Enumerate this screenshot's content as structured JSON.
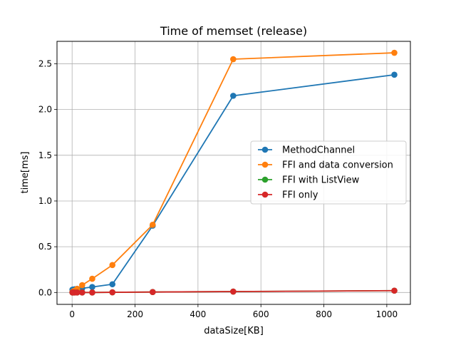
{
  "chart_data": {
    "type": "line",
    "title": "Time of memset (release)",
    "xlabel": "dataSize[KB]",
    "ylabel": "time[ms]",
    "xlim": [
      -48,
      1075
    ],
    "ylim": [
      -0.13,
      2.745
    ],
    "xticks": [
      0,
      200,
      400,
      600,
      800,
      1000
    ],
    "xtick_labels": [
      "0",
      "200",
      "400",
      "600",
      "800",
      "1000"
    ],
    "yticks": [
      0.0,
      0.5,
      1.0,
      1.5,
      2.0,
      2.5
    ],
    "ytick_labels": [
      "0.0",
      "0.5",
      "1.0",
      "1.5",
      "2.0",
      "2.5"
    ],
    "grid": true,
    "legend_position": "center-right",
    "x": [
      1,
      2,
      4,
      8,
      16,
      32,
      64,
      128,
      256,
      512,
      1024
    ],
    "series": [
      {
        "name": "MethodChannel",
        "color": "#1f77b4",
        "values": [
          0.03,
          0.03,
          0.03,
          0.035,
          0.04,
          0.045,
          0.06,
          0.09,
          0.73,
          2.15,
          2.38
        ]
      },
      {
        "name": "FFI and data conversion",
        "color": "#ff7f0e",
        "values": [
          0.005,
          0.008,
          0.012,
          0.02,
          0.04,
          0.08,
          0.15,
          0.3,
          0.74,
          2.55,
          2.62
        ]
      },
      {
        "name": "FFI with ListView",
        "color": "#2ca02c",
        "values": [
          0.0,
          0.0,
          0.0,
          0.0,
          0.0,
          0.0,
          0.0,
          0.002,
          0.005,
          0.01,
          0.02
        ]
      },
      {
        "name": "FFI only",
        "color": "#d62728",
        "values": [
          0.0,
          0.0,
          0.0,
          0.0,
          0.0,
          0.0,
          0.0,
          0.002,
          0.005,
          0.01,
          0.02
        ]
      }
    ]
  }
}
